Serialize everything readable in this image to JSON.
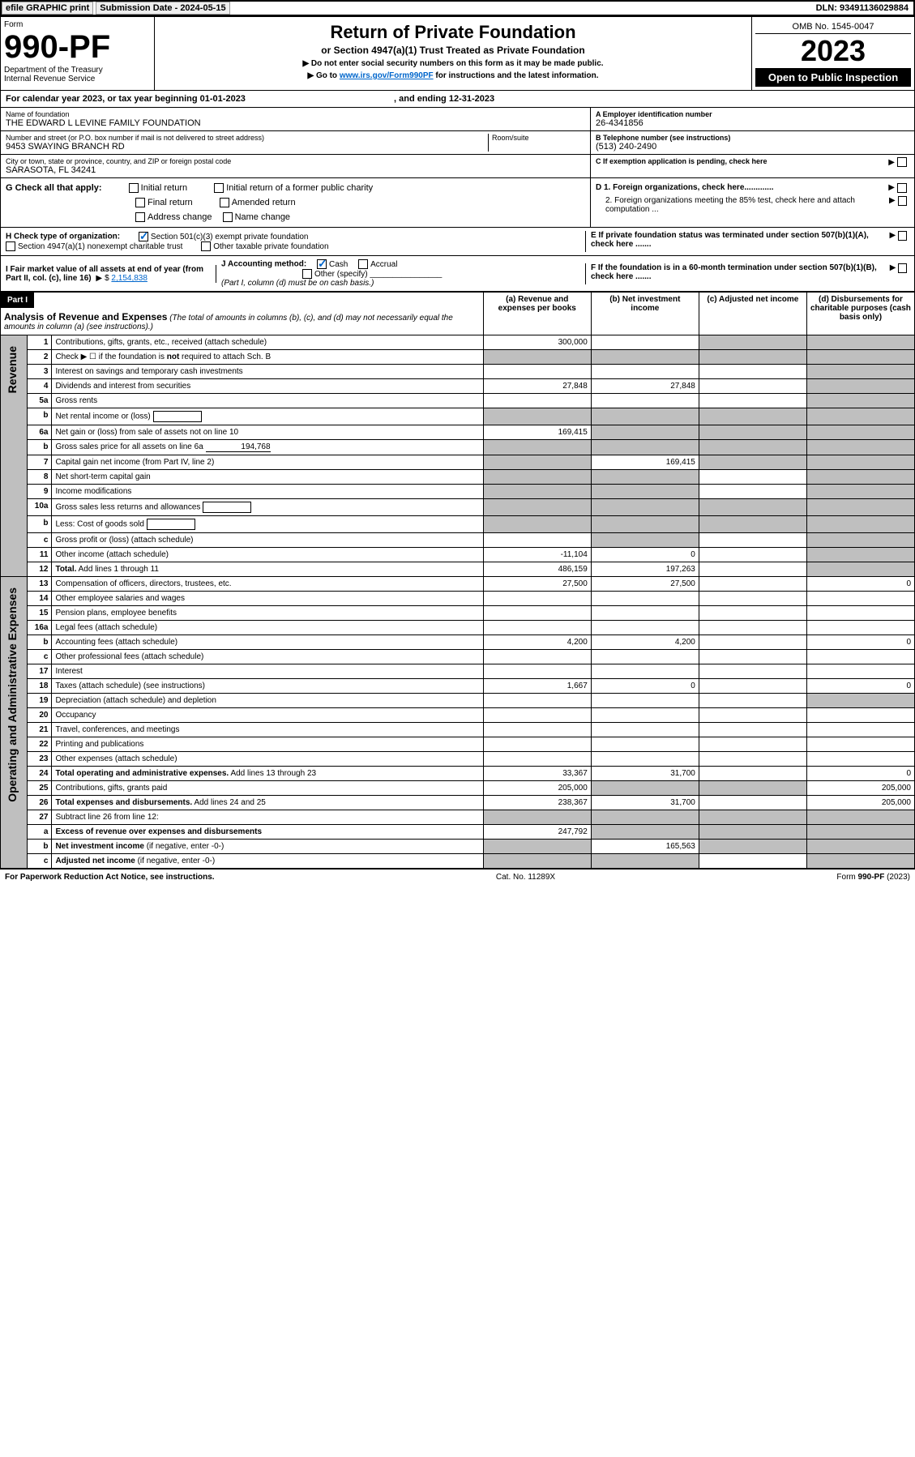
{
  "header": {
    "efile": "efile GRAPHIC print",
    "submission": "Submission Date - 2024-05-15",
    "dln": "DLN: 93491136029884"
  },
  "form": {
    "label": "Form",
    "number": "990-PF",
    "dept": "Department of the Treasury",
    "irs": "Internal Revenue Service",
    "title": "Return of Private Foundation",
    "subtitle": "or Section 4947(a)(1) Trust Treated as Private Foundation",
    "note1": "▶ Do not enter social security numbers on this form as it may be made public.",
    "note2_pre": "▶ Go to ",
    "note2_link": "www.irs.gov/Form990PF",
    "note2_post": " for instructions and the latest information.",
    "omb": "OMB No. 1545-0047",
    "year": "2023",
    "open": "Open to Public Inspection"
  },
  "cal": {
    "text_pre": "For calendar year 2023, or tax year beginning ",
    "begin": "01-01-2023",
    "text_mid": " , and ending ",
    "end": "12-31-2023"
  },
  "info": {
    "name_label": "Name of foundation",
    "name": "THE EDWARD L LEVINE FAMILY FOUNDATION",
    "addr_label": "Number and street (or P.O. box number if mail is not delivered to street address)",
    "addr": "9453 SWAYING BRANCH RD",
    "room_label": "Room/suite",
    "city_label": "City or town, state or province, country, and ZIP or foreign postal code",
    "city": "SARASOTA, FL  34241",
    "ein_label": "A Employer identification number",
    "ein": "26-4341856",
    "phone_label": "B Telephone number (see instructions)",
    "phone": "(513) 240-2490",
    "c_label": "C If exemption application is pending, check here"
  },
  "checks": {
    "g_label": "G Check all that apply:",
    "g1": "Initial return",
    "g2": "Initial return of a former public charity",
    "g3": "Final return",
    "g4": "Amended return",
    "g5": "Address change",
    "g6": "Name change",
    "h_label": "H Check type of organization:",
    "h1": "Section 501(c)(3) exempt private foundation",
    "h2": "Section 4947(a)(1) nonexempt charitable trust",
    "h3": "Other taxable private foundation",
    "i_label": "I Fair market value of all assets at end of year (from Part II, col. (c), line 16)",
    "i_val": "2,154,838",
    "j_label": "J Accounting method:",
    "j1": "Cash",
    "j2": "Accrual",
    "j3": "Other (specify)",
    "j_note": "(Part I, column (d) must be on cash basis.)",
    "d1": "D 1. Foreign organizations, check here.............",
    "d2": "2. Foreign organizations meeting the 85% test, check here and attach computation ...",
    "e": "E  If private foundation status was terminated under section 507(b)(1)(A), check here .......",
    "f": "F  If the foundation is in a 60-month termination under section 507(b)(1)(B), check here .......",
    "arrow": "▶"
  },
  "part1": {
    "label": "Part I",
    "title": "Analysis of Revenue and Expenses",
    "note": " (The total of amounts in columns (b), (c), and (d) may not necessarily equal the amounts in column (a) (see instructions).)",
    "col_a": "(a)   Revenue and expenses per books",
    "col_b": "(b)   Net investment income",
    "col_c": "(c)   Adjusted net income",
    "col_d": "(d)   Disbursements for charitable purposes (cash basis only)"
  },
  "side": {
    "revenue": "Revenue",
    "expenses": "Operating and Administrative Expenses"
  },
  "rows": [
    {
      "n": "1",
      "d": "Contributions, gifts, grants, etc., received (attach schedule)",
      "a": "300,000",
      "b": "",
      "c": "grey",
      "dcol": "grey"
    },
    {
      "n": "2",
      "d": "Check ▶ ☐ if the foundation is <b>not</b> required to attach Sch. B",
      "dots": true,
      "a": "grey",
      "b": "grey",
      "c": "grey",
      "dcol": "grey"
    },
    {
      "n": "3",
      "d": "Interest on savings and temporary cash investments",
      "a": "",
      "b": "",
      "c": "",
      "dcol": "grey"
    },
    {
      "n": "4",
      "d": "Dividends and interest from securities",
      "dots": true,
      "a": "27,848",
      "b": "27,848",
      "c": "",
      "dcol": "grey"
    },
    {
      "n": "5a",
      "d": "Gross rents",
      "dots": true,
      "a": "",
      "b": "",
      "c": "",
      "dcol": "grey"
    },
    {
      "n": "b",
      "d": "Net rental income or (loss)",
      "box": true,
      "a": "grey",
      "b": "grey",
      "c": "grey",
      "dcol": "grey"
    },
    {
      "n": "6a",
      "d": "Net gain or (loss) from sale of assets not on line 10",
      "a": "169,415",
      "b": "grey",
      "c": "grey",
      "dcol": "grey"
    },
    {
      "n": "b",
      "d": "Gross sales price for all assets on line 6a",
      "inline": "194,768",
      "a": "grey",
      "b": "grey",
      "c": "grey",
      "dcol": "grey"
    },
    {
      "n": "7",
      "d": "Capital gain net income (from Part IV, line 2)",
      "dots": true,
      "a": "grey",
      "b": "169,415",
      "c": "grey",
      "dcol": "grey"
    },
    {
      "n": "8",
      "d": "Net short-term capital gain",
      "dots": true,
      "a": "grey",
      "b": "grey",
      "c": "",
      "dcol": "grey"
    },
    {
      "n": "9",
      "d": "Income modifications",
      "dots": true,
      "a": "grey",
      "b": "grey",
      "c": "",
      "dcol": "grey"
    },
    {
      "n": "10a",
      "d": "Gross sales less returns and allowances",
      "box": true,
      "a": "grey",
      "b": "grey",
      "c": "grey",
      "dcol": "grey"
    },
    {
      "n": "b",
      "d": "Less: Cost of goods sold",
      "dots": true,
      "box": true,
      "a": "grey",
      "b": "grey",
      "c": "grey",
      "dcol": "grey"
    },
    {
      "n": "c",
      "d": "Gross profit or (loss) (attach schedule)",
      "dots": true,
      "a": "",
      "b": "grey",
      "c": "",
      "dcol": "grey"
    },
    {
      "n": "11",
      "d": "Other income (attach schedule)",
      "dots": true,
      "a": "-11,104",
      "b": "0",
      "c": "",
      "dcol": "grey"
    },
    {
      "n": "12",
      "d": "<b>Total.</b> Add lines 1 through 11",
      "dots": true,
      "a": "486,159",
      "b": "197,263",
      "c": "",
      "dcol": "grey"
    },
    {
      "n": "13",
      "d": "Compensation of officers, directors, trustees, etc.",
      "a": "27,500",
      "b": "27,500",
      "c": "",
      "dcol": "0"
    },
    {
      "n": "14",
      "d": "Other employee salaries and wages",
      "dots": true,
      "a": "",
      "b": "",
      "c": "",
      "dcol": ""
    },
    {
      "n": "15",
      "d": "Pension plans, employee benefits",
      "dots": true,
      "a": "",
      "b": "",
      "c": "",
      "dcol": ""
    },
    {
      "n": "16a",
      "d": "Legal fees (attach schedule)",
      "dots": true,
      "a": "",
      "b": "",
      "c": "",
      "dcol": ""
    },
    {
      "n": "b",
      "d": "Accounting fees (attach schedule)",
      "dots": true,
      "a": "4,200",
      "b": "4,200",
      "c": "",
      "dcol": "0"
    },
    {
      "n": "c",
      "d": "Other professional fees (attach schedule)",
      "dots": true,
      "a": "",
      "b": "",
      "c": "",
      "dcol": ""
    },
    {
      "n": "17",
      "d": "Interest",
      "dots": true,
      "a": "",
      "b": "",
      "c": "",
      "dcol": ""
    },
    {
      "n": "18",
      "d": "Taxes (attach schedule) (see instructions)",
      "dots": true,
      "a": "1,667",
      "b": "0",
      "c": "",
      "dcol": "0"
    },
    {
      "n": "19",
      "d": "Depreciation (attach schedule) and depletion",
      "dots": true,
      "a": "",
      "b": "",
      "c": "",
      "dcol": "grey"
    },
    {
      "n": "20",
      "d": "Occupancy",
      "dots": true,
      "a": "",
      "b": "",
      "c": "",
      "dcol": ""
    },
    {
      "n": "21",
      "d": "Travel, conferences, and meetings",
      "dots": true,
      "a": "",
      "b": "",
      "c": "",
      "dcol": ""
    },
    {
      "n": "22",
      "d": "Printing and publications",
      "dots": true,
      "a": "",
      "b": "",
      "c": "",
      "dcol": ""
    },
    {
      "n": "23",
      "d": "Other expenses (attach schedule)",
      "dots": true,
      "a": "",
      "b": "",
      "c": "",
      "dcol": ""
    },
    {
      "n": "24",
      "d": "<b>Total operating and administrative expenses.</b> Add lines 13 through 23",
      "dots": true,
      "a": "33,367",
      "b": "31,700",
      "c": "",
      "dcol": "0"
    },
    {
      "n": "25",
      "d": "Contributions, gifts, grants paid",
      "dots": true,
      "a": "205,000",
      "b": "grey",
      "c": "grey",
      "dcol": "205,000"
    },
    {
      "n": "26",
      "d": "<b>Total expenses and disbursements.</b> Add lines 24 and 25",
      "a": "238,367",
      "b": "31,700",
      "c": "",
      "dcol": "205,000"
    },
    {
      "n": "27",
      "d": "Subtract line 26 from line 12:",
      "a": "grey",
      "b": "grey",
      "c": "grey",
      "dcol": "grey"
    },
    {
      "n": "a",
      "d": "<b>Excess of revenue over expenses and disbursements</b>",
      "a": "247,792",
      "b": "grey",
      "c": "grey",
      "dcol": "grey"
    },
    {
      "n": "b",
      "d": "<b>Net investment income</b> (if negative, enter -0-)",
      "a": "grey",
      "b": "165,563",
      "c": "grey",
      "dcol": "grey"
    },
    {
      "n": "c",
      "d": "<b>Adjusted net income</b> (if negative, enter -0-)",
      "dots": true,
      "a": "grey",
      "b": "grey",
      "c": "",
      "dcol": "grey"
    }
  ],
  "footer": {
    "left": "For Paperwork Reduction Act Notice, see instructions.",
    "mid": "Cat. No. 11289X",
    "right": "Form 990-PF (2023)"
  }
}
